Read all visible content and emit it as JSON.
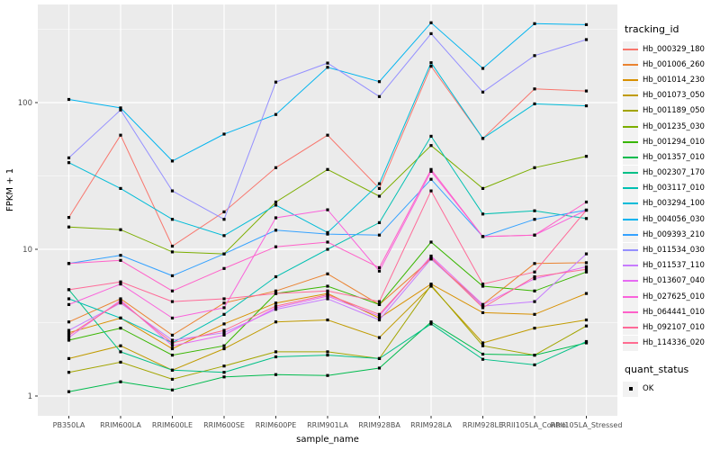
{
  "chart_data": {
    "type": "line",
    "title": "",
    "xlabel": "sample_name",
    "ylabel": "FPKM + 1",
    "y_scale": "log10",
    "y_ticks": [
      1,
      10,
      100
    ],
    "ylim": [
      0.85,
      420
    ],
    "grid": "on",
    "legend_position": "right",
    "point_shape": "small black square",
    "categories": [
      "PB350LA",
      "RRIM600LA",
      "RRIM600LE",
      "RRIM600SE",
      "RRIM600PE",
      "RRIM901LA",
      "RRIM928BA",
      "RRIM928LA",
      "RRIM928LE",
      "RRII105LA_Control",
      "RRII105LA_Stressed"
    ],
    "series": [
      {
        "name": "Hb_000329_180",
        "color": "#F8766D",
        "values": [
          16.5,
          60,
          10.5,
          18,
          36,
          60,
          26,
          177,
          57,
          124,
          120
        ]
      },
      {
        "name": "Hb_001006_260",
        "color": "#EA8331",
        "values": [
          3.2,
          4.6,
          2.6,
          4.3,
          5.2,
          6.8,
          4.2,
          8.6,
          4.2,
          8.0,
          8.1
        ]
      },
      {
        "name": "Hb_001014_230",
        "color": "#D89000",
        "values": [
          2.7,
          3.4,
          2.1,
          3.1,
          4.3,
          5.0,
          3.4,
          5.8,
          3.7,
          3.6,
          5.0
        ]
      },
      {
        "name": "Hb_001073_050",
        "color": "#C09B00",
        "values": [
          1.8,
          2.2,
          1.5,
          2.1,
          3.2,
          3.3,
          2.5,
          5.6,
          2.3,
          2.9,
          3.3
        ]
      },
      {
        "name": "Hb_001189_050",
        "color": "#A3A500",
        "values": [
          1.45,
          1.7,
          1.3,
          1.6,
          2.0,
          2.0,
          1.8,
          5.7,
          2.2,
          1.9,
          3.0
        ]
      },
      {
        "name": "Hb_001235_030",
        "color": "#7CAE00",
        "values": [
          14.2,
          13.6,
          9.6,
          9.3,
          21,
          35,
          23,
          51,
          26,
          36,
          43
        ]
      },
      {
        "name": "Hb_001294_010",
        "color": "#39B600",
        "values": [
          2.4,
          2.9,
          1.9,
          2.2,
          5.0,
          5.6,
          4.2,
          11.2,
          5.6,
          5.2,
          7.0
        ]
      },
      {
        "name": "Hb_001357_010",
        "color": "#00BB4E",
        "values": [
          1.07,
          1.25,
          1.1,
          1.35,
          1.4,
          1.38,
          1.55,
          3.2,
          1.93,
          1.9,
          2.3
        ]
      },
      {
        "name": "Hb_002307_170",
        "color": "#00C087",
        "values": [
          5.3,
          2.0,
          1.5,
          1.45,
          1.85,
          1.9,
          1.8,
          3.1,
          1.78,
          1.63,
          2.35
        ]
      },
      {
        "name": "Hb_003117_010",
        "color": "#00C0B2",
        "values": [
          4.6,
          3.4,
          2.3,
          3.6,
          6.5,
          10,
          15.2,
          59,
          17.4,
          18.3,
          16.2
        ]
      },
      {
        "name": "Hb_003294_100",
        "color": "#00BCD8",
        "values": [
          39,
          26,
          16,
          12.4,
          20,
          13,
          28,
          187,
          57,
          98,
          95
        ]
      },
      {
        "name": "Hb_004056_030",
        "color": "#00B4EF",
        "values": [
          105,
          92,
          40,
          61,
          83,
          174,
          139,
          350,
          171,
          345,
          340
        ]
      },
      {
        "name": "Hb_009393_210",
        "color": "#35A2FF",
        "values": [
          8.0,
          9.1,
          6.6,
          9.3,
          13.5,
          12.7,
          12.5,
          30,
          12.2,
          16,
          18.5
        ]
      },
      {
        "name": "Hb_011534_030",
        "color": "#9590FF",
        "values": [
          42,
          89,
          25,
          16,
          138,
          186,
          110,
          295,
          118,
          209,
          269
        ]
      },
      {
        "name": "Hb_011537_110",
        "color": "#C77CFF",
        "values": [
          2.8,
          4.3,
          2.4,
          2.7,
          3.9,
          4.6,
          3.3,
          8.6,
          4.1,
          4.4,
          9.3
        ]
      },
      {
        "name": "Hb_013607_040",
        "color": "#E76BF3",
        "values": [
          2.5,
          4.5,
          2.2,
          2.6,
          4.0,
          4.8,
          3.5,
          9.0,
          4.2,
          6.3,
          7.6
        ]
      },
      {
        "name": "Hb_027625_010",
        "color": "#FA62DB",
        "values": [
          4.2,
          5.8,
          3.4,
          4.0,
          16.4,
          18.6,
          7.1,
          34,
          12.2,
          12.5,
          18.5
        ]
      },
      {
        "name": "Hb_064441_010",
        "color": "#FF61C9",
        "values": [
          8.0,
          8.4,
          5.2,
          7.4,
          10.4,
          11.2,
          7.5,
          35,
          12.2,
          12.5,
          21
        ]
      },
      {
        "name": "Hb_092107_010",
        "color": "#FF6A98",
        "values": [
          5.3,
          6.0,
          4.4,
          4.6,
          5.0,
          5.2,
          4.4,
          25,
          5.8,
          7.0,
          18.5
        ]
      },
      {
        "name": "Hb_114336_020",
        "color": "#FF6C91",
        "values": [
          2.6,
          4.4,
          2.3,
          2.8,
          4.1,
          4.9,
          3.6,
          8.8,
          4.0,
          6.5,
          7.3
        ]
      }
    ]
  },
  "legends": {
    "tracking_title": "tracking_id",
    "quant_title": "quant_status",
    "quant_item": "OK"
  },
  "theme": {
    "panel_bg": "#EBEBEB",
    "grid_color": "#FFFFFF",
    "tick_label_color": "#4D4D4D",
    "key_bg": "#F2F2F2",
    "point_color": "#000000"
  }
}
